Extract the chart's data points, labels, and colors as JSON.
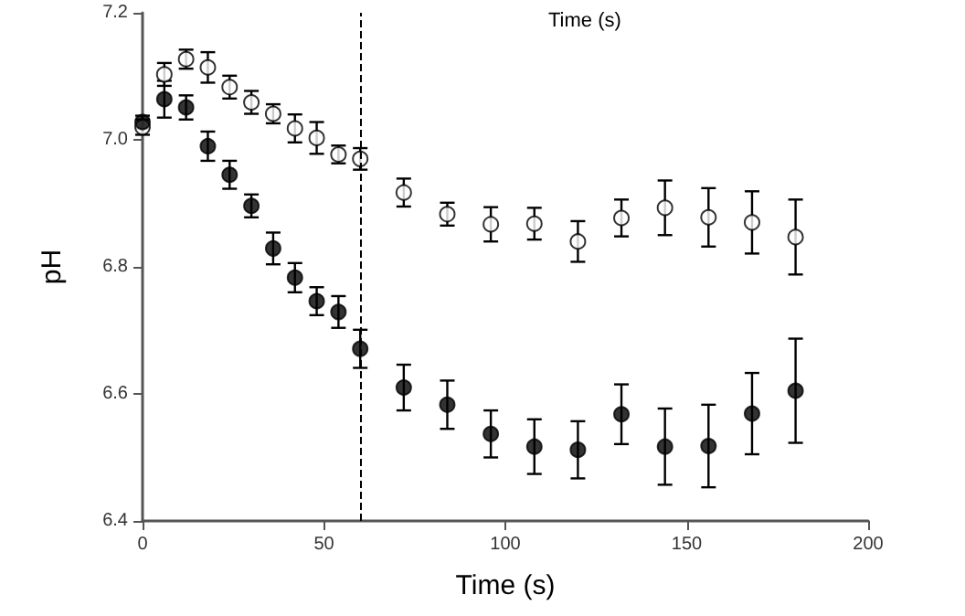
{
  "chart_data": {
    "type": "scatter",
    "xlabel": "Time (s)",
    "ylabel": "pH",
    "annotations": [
      "Time (s)"
    ],
    "x": [
      0,
      6,
      12,
      18,
      24,
      30,
      36,
      42,
      48,
      54,
      60,
      72,
      84,
      96,
      108,
      120,
      132,
      144,
      156,
      168,
      180
    ],
    "series": [
      {
        "color": "#ffffff",
        "values": [
          7.02,
          7.103,
          7.127,
          7.114,
          7.083,
          7.059,
          7.041,
          7.018,
          7.003,
          6.977,
          6.97,
          6.917,
          6.883,
          6.867,
          6.868,
          6.84,
          6.877,
          6.893,
          6.878,
          6.87,
          6.847
        ],
        "errors": [
          0.012,
          0.018,
          0.015,
          0.024,
          0.018,
          0.018,
          0.015,
          0.022,
          0.025,
          0.014,
          0.017,
          0.022,
          0.018,
          0.027,
          0.025,
          0.032,
          0.029,
          0.043,
          0.046,
          0.049,
          0.059
        ]
      },
      {
        "color": "#000000",
        "values": [
          7.028,
          7.064,
          7.051,
          6.99,
          6.945,
          6.896,
          6.829,
          6.783,
          6.746,
          6.729,
          6.671,
          6.61,
          6.583,
          6.537,
          6.517,
          6.512,
          6.568,
          6.517,
          6.518,
          6.569,
          6.605
        ],
        "errors": [
          0.01,
          0.029,
          0.019,
          0.023,
          0.022,
          0.018,
          0.025,
          0.023,
          0.022,
          0.025,
          0.03,
          0.036,
          0.038,
          0.037,
          0.043,
          0.045,
          0.047,
          0.06,
          0.065,
          0.064,
          0.082
        ]
      }
    ],
    "marker": "circle",
    "xlim": [
      0,
      200
    ],
    "xticks": [
      0,
      50,
      100,
      150,
      200
    ],
    "ylim": [
      6.4,
      7.2
    ],
    "yticks": [
      6.4,
      6.6,
      6.8,
      {
        "value": 7,
        "label": "7.0"
      },
      7.2
    ],
    "ref_lines": [
      {
        "axis": "x",
        "value": 60,
        "line_style": "dashed",
        "color": "#000000"
      }
    ]
  }
}
